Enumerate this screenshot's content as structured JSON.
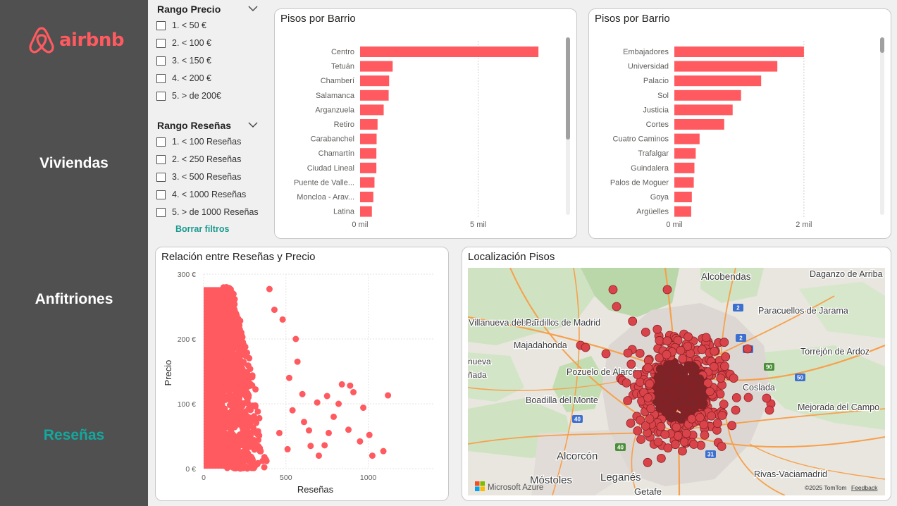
{
  "brand": {
    "name": "airbnb",
    "color": "#ff5a5f",
    "icon": "airbnb-belo-icon"
  },
  "nav": {
    "viviendas": "Viviendas",
    "anfitriones": "Anfitriones",
    "resenas": "Reseñas",
    "active": "Reseñas",
    "active_color": "#13a89e"
  },
  "filters": {
    "precio": {
      "title": "Rango Precio",
      "options": [
        "1. < 50 €",
        "2. < 100 €",
        "3. < 150 €",
        "4. < 200 €",
        "5. > de 200€"
      ]
    },
    "resenas": {
      "title": "Rango Reseñas",
      "options": [
        "1. < 100 Reseñas",
        "2. < 250 Reseñas",
        "3. < 500 Reseñas",
        "4. < 1000 Reseñas",
        "5. > de 1000 Reseñas"
      ]
    },
    "clear_label": "Borrar filtros"
  },
  "charts": {
    "barrio": {
      "title": "Pisos por Barrio",
      "x_ticks": [
        "0 mil",
        "5 mil"
      ]
    },
    "subbarrio": {
      "title": "Pisos por Barrio",
      "x_ticks": [
        "0 mil",
        "2 mil"
      ]
    },
    "scatter": {
      "title": "Relación entre Reseñas y Precio",
      "xlabel": "Reseñas",
      "ylabel": "Precio",
      "y_ticks": [
        "300 €",
        "200 €",
        "100 €",
        "0 €"
      ],
      "x_ticks": [
        "0",
        "500",
        "1000"
      ]
    }
  },
  "map": {
    "title": "Localización Pisos",
    "labels": [
      "Alcobendas",
      "Daganzo de Arriba",
      "Las Rozas de Madrid",
      "Majadahonda",
      "Villanueva del Pardillo",
      "Paracuellos de Jarama",
      "Torrejón de Ardoz",
      "Pozuelo de Alarcón",
      "Boadilla del Monte",
      "Coslada",
      "Mejorada del Campo",
      "Alcorcón",
      "Móstoles",
      "Leganés",
      "Rivas-Vaciamadrid",
      "Getafe",
      "nueva",
      "ñada"
    ],
    "road_badges": [
      "2",
      "2",
      "50",
      "90",
      "50",
      "40",
      "31",
      "40"
    ],
    "attribution": "Microsoft Azure",
    "copyright": "©2025 TomTom",
    "feedback": "Feedback"
  },
  "chart_data": [
    {
      "type": "bar",
      "title": "Pisos por Barrio",
      "orientation": "horizontal",
      "categories": [
        "Centro",
        "Tetuán",
        "Chamberí",
        "Salamanca",
        "Arganzuela",
        "Retiro",
        "Carabanchel",
        "Chamartín",
        "Ciudad Lineal",
        "Puente de Valle...",
        "Moncloa - Arav...",
        "Latina"
      ],
      "values": [
        7550,
        1380,
        1230,
        1210,
        1000,
        740,
        700,
        690,
        690,
        610,
        560,
        500
      ],
      "xlim": [
        0,
        8500
      ],
      "x_ticks": [
        "0 mil",
        "5 mil"
      ],
      "grid": true
    },
    {
      "type": "bar",
      "title": "Pisos por Barrio",
      "orientation": "horizontal",
      "categories": [
        "Embajadores",
        "Universidad",
        "Palacio",
        "Sol",
        "Justicia",
        "Cortes",
        "Cuatro Caminos",
        "Trafalgar",
        "Guindalera",
        "Palos de Moguer",
        "Goya",
        "Argüelles"
      ],
      "values": [
        2000,
        1590,
        1340,
        1030,
        900,
        770,
        390,
        330,
        310,
        300,
        270,
        260
      ],
      "xlim": [
        0,
        3100
      ],
      "x_ticks": [
        "0 mil",
        "2 mil"
      ],
      "grid": true
    },
    {
      "type": "scatter",
      "title": "Relación entre Reseñas y Precio",
      "xlabel": "Reseñas",
      "ylabel": "Precio",
      "xlim": [
        0,
        1400
      ],
      "ylim": [
        0,
        300
      ],
      "x_ticks": [
        0,
        500,
        1000
      ],
      "y_ticks": [
        0,
        100,
        200,
        300
      ],
      "dense_region": {
        "x": [
          0,
          400
        ],
        "y": [
          0,
          280
        ]
      },
      "points": [
        [
          1025,
          20
        ],
        [
          1120,
          113
        ],
        [
          1092,
          27
        ],
        [
          1007,
          52
        ],
        [
          950,
          42
        ],
        [
          910,
          118
        ],
        [
          970,
          94
        ],
        [
          890,
          128
        ],
        [
          840,
          130
        ],
        [
          790,
          80
        ],
        [
          760,
          55
        ],
        [
          735,
          36
        ],
        [
          650,
          35
        ],
        [
          600,
          115
        ],
        [
          560,
          200
        ],
        [
          520,
          140
        ],
        [
          480,
          230
        ],
        [
          430,
          245
        ],
        [
          400,
          277
        ],
        [
          610,
          72
        ],
        [
          700,
          20
        ],
        [
          510,
          30
        ],
        [
          460,
          55
        ],
        [
          820,
          100
        ],
        [
          880,
          60
        ],
        [
          750,
          112
        ],
        [
          570,
          165
        ],
        [
          540,
          90
        ],
        [
          690,
          102
        ],
        [
          640,
          59
        ]
      ],
      "color": "#ff5a5f",
      "grid": true
    }
  ]
}
